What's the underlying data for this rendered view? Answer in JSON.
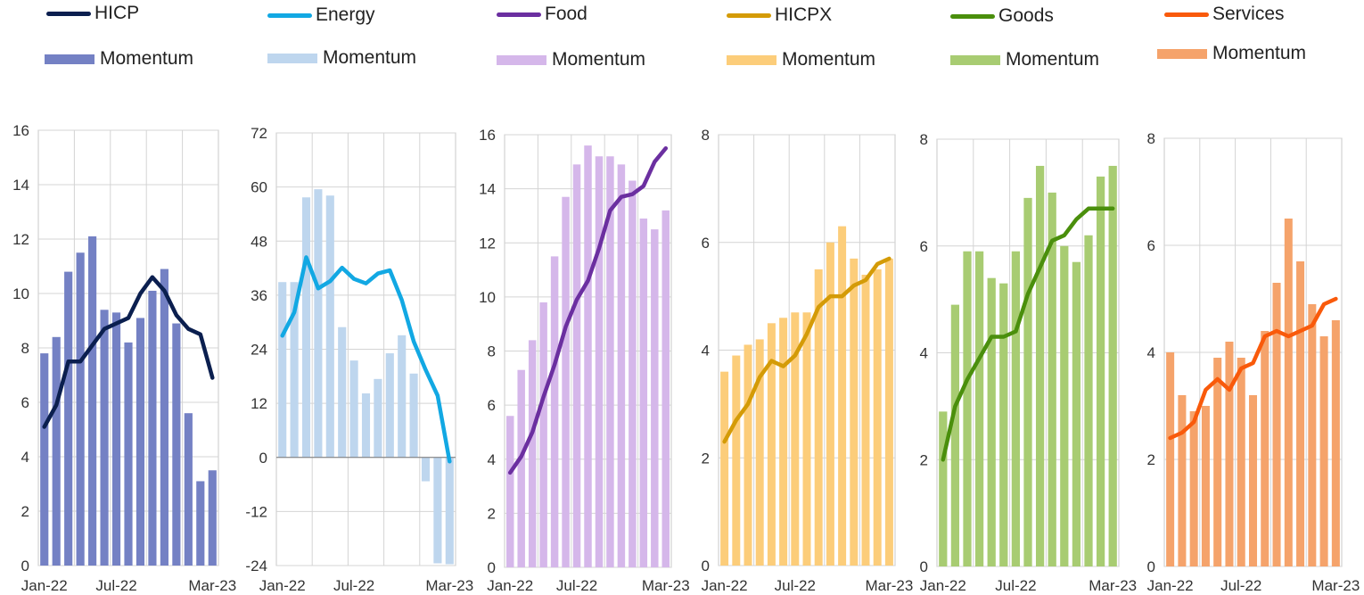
{
  "chart_data": [
    {
      "type": "bar",
      "line_name": "HICP",
      "bar_name": "Momentum",
      "line_color": "#0b1f4f",
      "bar_color": "#7481c4",
      "ylim": [
        0,
        16
      ],
      "yticks": [
        0,
        2,
        4,
        6,
        8,
        10,
        12,
        14,
        16
      ],
      "xticks": [
        "Jan-22",
        "Jul-22",
        "Mar-23"
      ],
      "months": 15,
      "bars": [
        7.8,
        8.4,
        10.8,
        11.5,
        12.1,
        9.4,
        9.3,
        8.2,
        9.1,
        10.1,
        10.9,
        8.9,
        5.6,
        3.1,
        3.5
      ],
      "line": [
        5.1,
        5.9,
        7.5,
        7.5,
        8.1,
        8.7,
        8.9,
        9.1,
        10.0,
        10.6,
        10.1,
        9.2,
        8.7,
        8.5,
        6.9
      ]
    },
    {
      "type": "bar",
      "line_name": "Energy",
      "bar_name": "Momentum",
      "line_color": "#12a8e3",
      "bar_color": "#bed6ee",
      "ylim": [
        -24,
        72
      ],
      "yticks": [
        -24,
        -12,
        0,
        12,
        24,
        36,
        48,
        60,
        72
      ],
      "xticks": [
        "Jan-22",
        "Jul-22",
        "Mar-23"
      ],
      "months": 15,
      "bars": [
        38.9,
        38.9,
        57.7,
        59.5,
        58.1,
        28.9,
        21.5,
        14.2,
        17.4,
        23.1,
        27.1,
        18.6,
        -5.3,
        -23.5,
        -23.7
      ],
      "line": [
        27.0,
        32.2,
        44.4,
        37.5,
        39.1,
        42.1,
        39.6,
        38.6,
        40.8,
        41.5,
        34.9,
        25.7,
        19.4,
        13.7,
        -0.9
      ]
    },
    {
      "type": "bar",
      "line_name": "Food",
      "bar_name": "Momentum",
      "line_color": "#6b2fa0",
      "bar_color": "#d5b7ea",
      "ylim": [
        0,
        16
      ],
      "yticks": [
        0,
        2,
        4,
        6,
        8,
        10,
        12,
        14,
        16
      ],
      "xticks": [
        "Jan-22",
        "Jul-22",
        "Mar-23"
      ],
      "months": 15,
      "bars": [
        5.6,
        7.3,
        8.4,
        9.8,
        11.5,
        13.7,
        14.9,
        15.6,
        15.2,
        15.2,
        14.9,
        14.3,
        12.9,
        12.5,
        13.2
      ],
      "line": [
        3.5,
        4.1,
        5.0,
        6.3,
        7.5,
        8.9,
        9.9,
        10.6,
        11.8,
        13.2,
        13.7,
        13.8,
        14.1,
        15.0,
        15.5
      ]
    },
    {
      "type": "bar",
      "line_name": "HICPX",
      "bar_name": "Momentum",
      "line_color": "#d49b07",
      "bar_color": "#fccd7a",
      "ylim": [
        0,
        8
      ],
      "yticks": [
        0,
        2,
        4,
        6,
        8
      ],
      "xticks": [
        "Jan-22",
        "Jul-22",
        "Mar-23"
      ],
      "months": 15,
      "bars": [
        3.6,
        3.9,
        4.1,
        4.2,
        4.5,
        4.6,
        4.7,
        4.7,
        5.5,
        6.0,
        6.3,
        5.7,
        5.4,
        5.5,
        5.7
      ],
      "line": [
        2.3,
        2.7,
        3.0,
        3.5,
        3.8,
        3.7,
        3.9,
        4.3,
        4.8,
        5.0,
        5.0,
        5.2,
        5.3,
        5.6,
        5.7
      ]
    },
    {
      "type": "bar",
      "line_name": "Goods",
      "bar_name": "Momentum",
      "line_color": "#4a8f0c",
      "bar_color": "#a8cc72",
      "ylim": [
        0,
        8
      ],
      "yticks": [
        0,
        2,
        4,
        6,
        8
      ],
      "xticks": [
        "Jan-22",
        "Jul-22",
        "Mar-23"
      ],
      "months": 15,
      "bars": [
        2.9,
        4.9,
        5.9,
        5.9,
        5.4,
        5.3,
        5.9,
        6.9,
        7.5,
        7.0,
        6.0,
        5.7,
        6.2,
        7.3,
        7.5
      ],
      "line": [
        2.0,
        3.0,
        3.5,
        3.9,
        4.3,
        4.3,
        4.4,
        5.1,
        5.6,
        6.1,
        6.2,
        6.5,
        6.7,
        6.7,
        6.7
      ]
    },
    {
      "type": "bar",
      "line_name": "Services",
      "bar_name": "Momentum",
      "line_color": "#f95a0b",
      "bar_color": "#f5a36b",
      "ylim": [
        0,
        8
      ],
      "yticks": [
        0,
        2,
        4,
        6,
        8
      ],
      "xticks": [
        "Jan-22",
        "Jul-22",
        "Mar-23"
      ],
      "months": 15,
      "bars": [
        4.0,
        3.2,
        2.9,
        3.0,
        3.9,
        4.2,
        3.9,
        3.2,
        4.4,
        5.3,
        6.5,
        5.7,
        4.9,
        4.3,
        4.6
      ],
      "line": [
        2.4,
        2.5,
        2.7,
        3.3,
        3.5,
        3.3,
        3.7,
        3.8,
        4.3,
        4.4,
        4.3,
        4.4,
        4.5,
        4.9,
        5.0
      ]
    }
  ]
}
